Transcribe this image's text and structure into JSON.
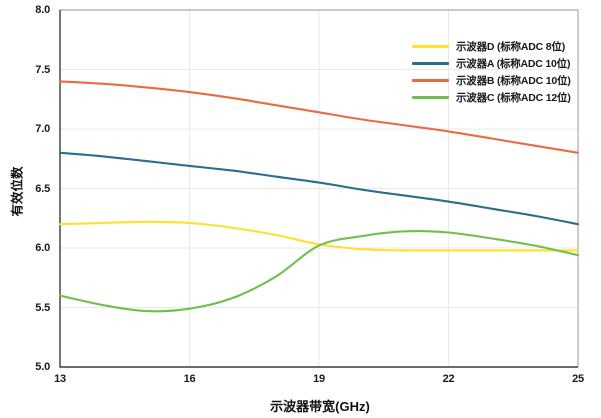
{
  "colors": {
    "grid": "#E9E9E9",
    "axis_dark": "#3B3B3B",
    "axis_light": "#ABABAB",
    "text": "#1A1A1A"
  },
  "chart_data": {
    "type": "line",
    "title": "",
    "xlabel": "示波器带宽(GHz)",
    "ylabel": "有效位数",
    "xlim": [
      13,
      25
    ],
    "ylim": [
      5.0,
      8.0
    ],
    "grid": true,
    "legend_position": "top-right",
    "x_ticks": [
      13,
      16,
      19,
      22,
      25
    ],
    "y_ticks": [
      8.0,
      7.5,
      7.0,
      6.5,
      6.0,
      5.5,
      5.0
    ],
    "x_gridlines": [
      16,
      19,
      22
    ],
    "y_gridlines": [
      7.5,
      7.0,
      6.5,
      6.0,
      5.5
    ],
    "x": [
      13,
      14,
      15,
      16,
      17,
      18,
      19,
      20,
      21,
      22,
      23,
      24,
      25
    ],
    "series": [
      {
        "name": "示波器D (标称ADC 8位)",
        "color": "#FFE02E",
        "values": [
          6.2,
          6.21,
          6.22,
          6.21,
          6.17,
          6.11,
          6.03,
          5.99,
          5.98,
          5.98,
          5.98,
          5.98,
          5.98
        ]
      },
      {
        "name": "示波器A (标称ADC 10位)",
        "color": "#26708E",
        "values": [
          6.8,
          6.77,
          6.73,
          6.69,
          6.65,
          6.6,
          6.55,
          6.49,
          6.44,
          6.39,
          6.33,
          6.27,
          6.2
        ]
      },
      {
        "name": "示波器B (标称ADC 10位)",
        "color": "#EB6A43",
        "values": [
          7.4,
          7.38,
          7.35,
          7.31,
          7.26,
          7.2,
          7.14,
          7.08,
          7.03,
          6.98,
          6.92,
          6.86,
          6.8
        ]
      },
      {
        "name": "示波器C (标称ADC 12位)",
        "color": "#70BF4D",
        "values": [
          5.6,
          5.52,
          5.47,
          5.49,
          5.58,
          5.76,
          6.02,
          6.1,
          6.14,
          6.13,
          6.08,
          6.02,
          5.94
        ]
      }
    ]
  }
}
